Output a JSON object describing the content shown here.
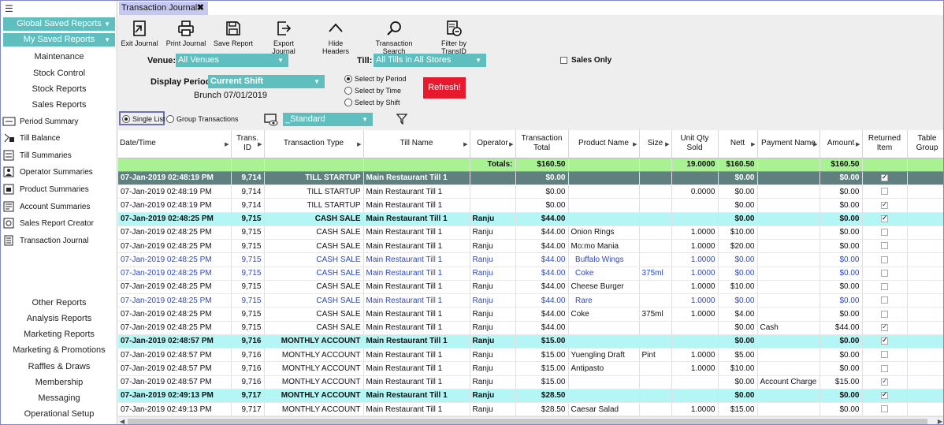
{
  "sidebar": {
    "global_saved": "Global Saved Reports",
    "my_saved": "My Saved Reports",
    "top_links": [
      "Maintenance",
      "Stock Control",
      "Stock Reports",
      "Sales Reports"
    ],
    "items": [
      {
        "label": "Period Summary",
        "icon": "period-summary-icon"
      },
      {
        "label": "Till Balance",
        "icon": "till-balance-icon"
      },
      {
        "label": "Till Summaries",
        "icon": "till-summaries-icon"
      },
      {
        "label": "Operator Summaries",
        "icon": "operator-icon"
      },
      {
        "label": "Product Summaries",
        "icon": "product-icon"
      },
      {
        "label": "Account Summaries",
        "icon": "account-icon"
      },
      {
        "label": "Sales Report Creator",
        "icon": "report-creator-icon"
      },
      {
        "label": "Transaction Journal",
        "icon": "journal-icon"
      }
    ],
    "bottom_links": [
      "Other Reports",
      "Analysis Reports",
      "Marketing Reports",
      "Marketing & Promotions",
      "Raffles & Draws",
      "Membership",
      "Messaging",
      "Operational Setup"
    ]
  },
  "tab": {
    "label": "Transaction Journal"
  },
  "toolbar": {
    "exit": "Exit Journal",
    "print": "Print Journal",
    "save": "Save Report",
    "export": "Export Journal",
    "hide": "Hide Headers",
    "search": "Transaction Search",
    "filter": "Filter by TransID"
  },
  "filters": {
    "venue_label": "Venue:",
    "venue_value": "All Venues",
    "till_label": "Till:",
    "till_value": "All Tills in All Stores",
    "sales_only": "Sales Only",
    "period_label": "Display Period:",
    "period_value": "Current Shift",
    "period_sub": "Brunch 07/01/2019",
    "select_period": "Select by Period",
    "select_time": "Select  by Time",
    "select_shift": "Select by Shift",
    "refresh": "Refresh!",
    "single_list": "Single List",
    "group_trans": "Group Transactions",
    "layout_value": "_Standard"
  },
  "grid": {
    "columns": [
      "Date/Time",
      "Trans. ID",
      "Transaction Type",
      "Till Name",
      "Operator",
      "Transaction Total",
      "Product Name",
      "Size",
      "Unit Qty Sold",
      "Nett",
      "Payment Name",
      "Amount",
      "Returned Item",
      "Table Group"
    ],
    "totals": {
      "label": "Totals:",
      "total": "$160.50",
      "qty": "19.0000",
      "nett": "$160.50",
      "amount": "$160.50"
    },
    "rows": [
      {
        "k": "head-dark",
        "d": "07-Jan-2019 02:48:19 PM",
        "id": "9,714",
        "type": "TILL STARTUP",
        "till": "Main Restaurant Till 1",
        "op": "",
        "tot": "$0.00",
        "prod": "",
        "size": "",
        "qty": "",
        "nett": "$0.00",
        "pay": "",
        "amt": "$0.00",
        "ret": true
      },
      {
        "k": "",
        "d": "07-Jan-2019 02:48:19 PM",
        "id": "9,714",
        "type": "TILL STARTUP",
        "till": "Main Restaurant Till 1",
        "op": "",
        "tot": "$0.00",
        "prod": "",
        "size": "",
        "qty": "0.0000",
        "nett": "$0.00",
        "pay": "",
        "amt": "$0.00",
        "ret": false
      },
      {
        "k": "",
        "d": "07-Jan-2019 02:48:19 PM",
        "id": "9,714",
        "type": "TILL STARTUP",
        "till": "Main Restaurant Till 1",
        "op": "",
        "tot": "$0.00",
        "prod": "",
        "size": "",
        "qty": "",
        "nett": "$0.00",
        "pay": "",
        "amt": "$0.00",
        "ret": true
      },
      {
        "k": "head",
        "d": "07-Jan-2019 02:48:25 PM",
        "id": "9,715",
        "type": "CASH SALE",
        "till": "Main Restaurant Till 1",
        "op": "Ranju",
        "tot": "$44.00",
        "prod": "",
        "size": "",
        "qty": "",
        "nett": "$0.00",
        "pay": "",
        "amt": "$0.00",
        "ret": true
      },
      {
        "k": "",
        "d": "07-Jan-2019 02:48:25 PM",
        "id": "9,715",
        "type": "CASH SALE",
        "till": "Main Restaurant Till 1",
        "op": "Ranju",
        "tot": "$44.00",
        "prod": "Onion Rings",
        "size": "",
        "qty": "1.0000",
        "nett": "$10.00",
        "pay": "",
        "amt": "$0.00",
        "ret": false
      },
      {
        "k": "",
        "d": "07-Jan-2019 02:48:25 PM",
        "id": "9,715",
        "type": "CASH SALE",
        "till": "Main Restaurant Till 1",
        "op": "Ranju",
        "tot": "$44.00",
        "prod": "Mo:mo Mania",
        "size": "",
        "qty": "1.0000",
        "nett": "$20.00",
        "pay": "",
        "amt": "$0.00",
        "ret": false
      },
      {
        "k": "blue",
        "d": "07-Jan-2019 02:48:25 PM",
        "id": "9,715",
        "type": "CASH SALE",
        "till": "Main Restaurant Till 1",
        "op": "Ranju",
        "tot": "$44.00",
        "prod": "  Buffalo Wings",
        "size": "",
        "qty": "1.0000",
        "nett": "$0.00",
        "pay": "",
        "amt": "$0.00",
        "ret": false
      },
      {
        "k": "blue",
        "d": "07-Jan-2019 02:48:25 PM",
        "id": "9,715",
        "type": "CASH SALE",
        "till": "Main Restaurant Till 1",
        "op": "Ranju",
        "tot": "$44.00",
        "prod": "  Coke",
        "size": "375ml",
        "qty": "1.0000",
        "nett": "$0.00",
        "pay": "",
        "amt": "$0.00",
        "ret": false
      },
      {
        "k": "",
        "d": "07-Jan-2019 02:48:25 PM",
        "id": "9,715",
        "type": "CASH SALE",
        "till": "Main Restaurant Till 1",
        "op": "Ranju",
        "tot": "$44.00",
        "prod": "Cheese Burger",
        "size": "",
        "qty": "1.0000",
        "nett": "$10.00",
        "pay": "",
        "amt": "$0.00",
        "ret": false
      },
      {
        "k": "blue",
        "d": "07-Jan-2019 02:48:25 PM",
        "id": "9,715",
        "type": "CASH SALE",
        "till": "Main Restaurant Till 1",
        "op": "Ranju",
        "tot": "$44.00",
        "prod": "  Rare",
        "size": "",
        "qty": "1.0000",
        "nett": "$0.00",
        "pay": "",
        "amt": "$0.00",
        "ret": false
      },
      {
        "k": "",
        "d": "07-Jan-2019 02:48:25 PM",
        "id": "9,715",
        "type": "CASH SALE",
        "till": "Main Restaurant Till 1",
        "op": "Ranju",
        "tot": "$44.00",
        "prod": "Coke",
        "size": "375ml",
        "qty": "1.0000",
        "nett": "$4.00",
        "pay": "",
        "amt": "$0.00",
        "ret": false
      },
      {
        "k": "",
        "d": "07-Jan-2019 02:48:25 PM",
        "id": "9,715",
        "type": "CASH SALE",
        "till": "Main Restaurant Till 1",
        "op": "Ranju",
        "tot": "$44.00",
        "prod": "",
        "size": "",
        "qty": "",
        "nett": "$0.00",
        "pay": "Cash",
        "amt": "$44.00",
        "ret": true
      },
      {
        "k": "head",
        "d": "07-Jan-2019 02:48:57 PM",
        "id": "9,716",
        "type": "MONTHLY ACCOUNT",
        "till": "Main Restaurant Till 1",
        "op": "Ranju",
        "tot": "$15.00",
        "prod": "",
        "size": "",
        "qty": "",
        "nett": "$0.00",
        "pay": "",
        "amt": "$0.00",
        "ret": true
      },
      {
        "k": "",
        "d": "07-Jan-2019 02:48:57 PM",
        "id": "9,716",
        "type": "MONTHLY ACCOUNT",
        "till": "Main Restaurant Till 1",
        "op": "Ranju",
        "tot": "$15.00",
        "prod": "Yuengling Draft",
        "size": "Pint",
        "qty": "1.0000",
        "nett": "$5.00",
        "pay": "",
        "amt": "$0.00",
        "ret": false
      },
      {
        "k": "",
        "d": "07-Jan-2019 02:48:57 PM",
        "id": "9,716",
        "type": "MONTHLY ACCOUNT",
        "till": "Main Restaurant Till 1",
        "op": "Ranju",
        "tot": "$15.00",
        "prod": "Antipasto",
        "size": "",
        "qty": "1.0000",
        "nett": "$10.00",
        "pay": "",
        "amt": "$0.00",
        "ret": false
      },
      {
        "k": "",
        "d": "07-Jan-2019 02:48:57 PM",
        "id": "9,716",
        "type": "MONTHLY ACCOUNT",
        "till": "Main Restaurant Till 1",
        "op": "Ranju",
        "tot": "$15.00",
        "prod": "",
        "size": "",
        "qty": "",
        "nett": "$0.00",
        "pay": "Account Charge",
        "amt": "$15.00",
        "ret": true
      },
      {
        "k": "head",
        "d": "07-Jan-2019 02:49:13 PM",
        "id": "9,717",
        "type": "MONTHLY ACCOUNT",
        "till": "Main Restaurant Till 1",
        "op": "Ranju",
        "tot": "$28.50",
        "prod": "",
        "size": "",
        "qty": "",
        "nett": "$0.00",
        "pay": "",
        "amt": "$0.00",
        "ret": true
      },
      {
        "k": "",
        "d": "07-Jan-2019 02:49:13 PM",
        "id": "9,717",
        "type": "MONTHLY ACCOUNT",
        "till": "Main Restaurant Till 1",
        "op": "Ranju",
        "tot": "$28.50",
        "prod": "Caesar Salad",
        "size": "",
        "qty": "1.0000",
        "nett": "$15.00",
        "pay": "",
        "amt": "$0.00",
        "ret": false
      }
    ]
  }
}
